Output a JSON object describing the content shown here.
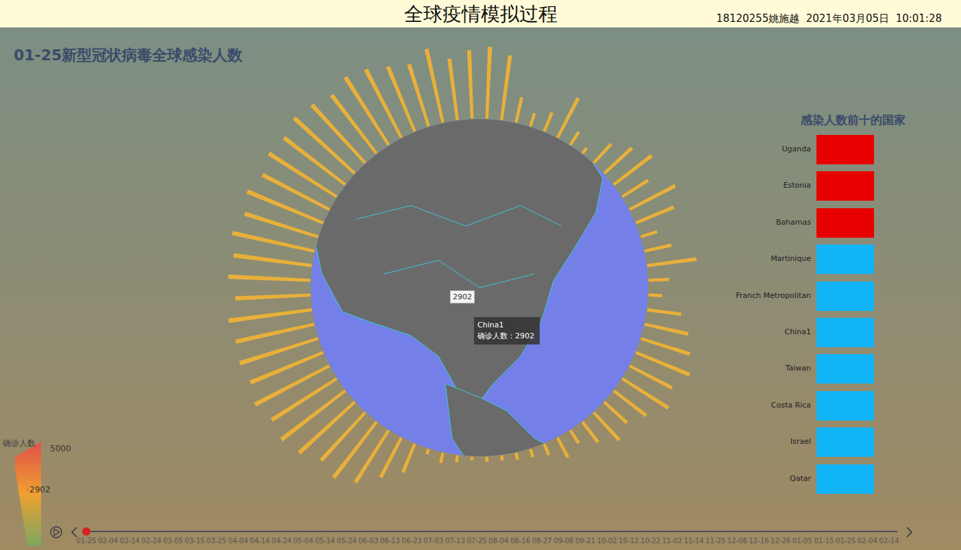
{
  "header": {
    "title": "全球疫情模拟过程",
    "info": "18120255姚施越  2021年03月05日  10:01:28"
  },
  "chart_data": {
    "type": "radial_bar",
    "title": "01-25新型冠状病毒全球感染人数",
    "values": [
      4000,
      4200,
      3800,
      1500,
      800,
      1200,
      2600,
      900,
      400,
      1500,
      2200,
      2800,
      1800,
      3000,
      2400,
      1000,
      1600,
      2900,
      1200,
      800,
      2000,
      2600,
      3000,
      3400,
      2800,
      3200,
      2400,
      1800,
      2200,
      1500,
      900,
      1300,
      700,
      500,
      400,
      300,
      300,
      200,
      400,
      600,
      300,
      1800,
      2600,
      3600,
      4100,
      3800,
      4400,
      4700,
      4500,
      4900,
      4600,
      4800,
      4700,
      4900,
      4400,
      4800,
      4600,
      4900,
      4500,
      4800,
      4400,
      4700,
      4500,
      4800,
      4600,
      4300,
      4700,
      4500,
      4100,
      3800,
      4400,
      3600
    ],
    "color": "#e8b03a",
    "ylim": [
      0,
      5000
    ],
    "tick_labels": false
  },
  "tooltip": {
    "name": "China1",
    "label": "确诊人数：",
    "value": 2902
  },
  "visual_map": {
    "title": "确诊人数",
    "range": [
      0,
      5000
    ],
    "ticks": [
      5000
    ],
    "pointer": 2902,
    "colors": [
      "#e0504a",
      "#f0a030",
      "#7aa860"
    ]
  },
  "top_ten": {
    "title": "感染人数前十的国家",
    "countries": [
      {
        "name": "Uganda",
        "color": "#e80000"
      },
      {
        "name": "Estonia",
        "color": "#e80000"
      },
      {
        "name": "Bahamas",
        "color": "#e80000"
      },
      {
        "name": "Martinique",
        "color": "#12b4f8"
      },
      {
        "name": "Franch Metropolitan",
        "color": "#12b4f8"
      },
      {
        "name": "China1",
        "color": "#12b4f8"
      },
      {
        "name": "Taiwan",
        "color": "#12b4f8"
      },
      {
        "name": "Costa Rica",
        "color": "#12b4f8"
      },
      {
        "name": "Israel",
        "color": "#12b4f8"
      },
      {
        "name": "Qatar",
        "color": "#12b4f8"
      }
    ]
  },
  "timeline": {
    "dates": [
      "01-25",
      "02-04",
      "02-14",
      "02-24",
      "03-05",
      "03-15",
      "03-25",
      "04-04",
      "04-14",
      "04-24",
      "05-04",
      "05-14",
      "05-24",
      "06-03",
      "06-13",
      "06-23",
      "07-03",
      "07-13",
      "07-25",
      "08-04",
      "08-16",
      "08-27",
      "09-06",
      "09-21",
      "10-02",
      "10-12",
      "10-22",
      "11-02",
      "11-14",
      "11-25",
      "12-06",
      "12-16",
      "12-26",
      "01-05",
      "01-15",
      "01-25",
      "02-04",
      "02-14"
    ],
    "current": 0
  }
}
